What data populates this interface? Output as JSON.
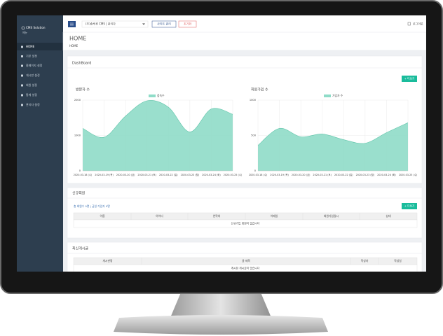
{
  "sidebar": {
    "brand": "CMS Solution",
    "subtitle": "메뉴",
    "menu": [
      "HOME",
      "기본 설정",
      "홈페이지 설정",
      "게시판 설정",
      "회원 설정",
      "통계 설정",
      "관리자 설정"
    ]
  },
  "topbar": {
    "site_select": "(주)솔루션 CMS | 관리자",
    "site_button": "사이트 관리",
    "reset_button": "초기화",
    "logout": "로그아웃"
  },
  "page": {
    "title": "HOME",
    "breadcrumb": "HOME"
  },
  "dashboard": {
    "title": "DashBoard",
    "more_button": "+ 더보기"
  },
  "chart_data": [
    {
      "type": "area",
      "title": "방문자 수",
      "categories": [
        "2020-03-18 (수)",
        "2020-03-19 (목)",
        "2020-03-20 (금)",
        "2020-03-21 (토)",
        "2020-03-22 (일)",
        "2020-03-23 (월)",
        "2020-03-24 (화)",
        "2020-03-25 (수)"
      ],
      "series": [
        {
          "name": "접속수",
          "color": "#8fdcc8",
          "values": [
            1200,
            950,
            1550,
            1980,
            1800,
            1100,
            1750,
            1600
          ]
        }
      ],
      "ylim": [
        0,
        2000
      ],
      "yticks": [
        0,
        1000,
        2000
      ],
      "grid": true
    },
    {
      "type": "area",
      "title": "회원가입 수",
      "categories": [
        "2020-03-18 (수)",
        "2020-03-19 (목)",
        "2020-03-20 (금)",
        "2020-03-21 (토)",
        "2020-03-22 (일)",
        "2020-03-23 (월)",
        "2020-03-24 (화)",
        "2020-03-25 (수)"
      ],
      "series": [
        {
          "name": "가입자 수",
          "color": "#8fdcc8",
          "values": [
            360,
            600,
            480,
            520,
            440,
            390,
            540,
            680
          ]
        }
      ],
      "ylim": [
        0,
        1000
      ],
      "yticks": [
        0,
        500,
        1000
      ],
      "grid": true
    }
  ],
  "new_members": {
    "title": "신규회원",
    "summary": "총 회원수 0명 | 금일 가입자 0명",
    "more_button": "+ 더보기",
    "table": {
      "columns": [
        "이름",
        "아이디",
        "연락처",
        "이메일",
        "회원가입일시",
        "상태"
      ],
      "empty": "신규가입 회원이 없습니다"
    }
  },
  "recent_posts": {
    "title": "최신게시글",
    "table": {
      "columns": [
        "게시판명",
        "글 제목",
        "작성자",
        "작성일"
      ],
      "empty": "게시된 게시글이 없습니다"
    }
  }
}
